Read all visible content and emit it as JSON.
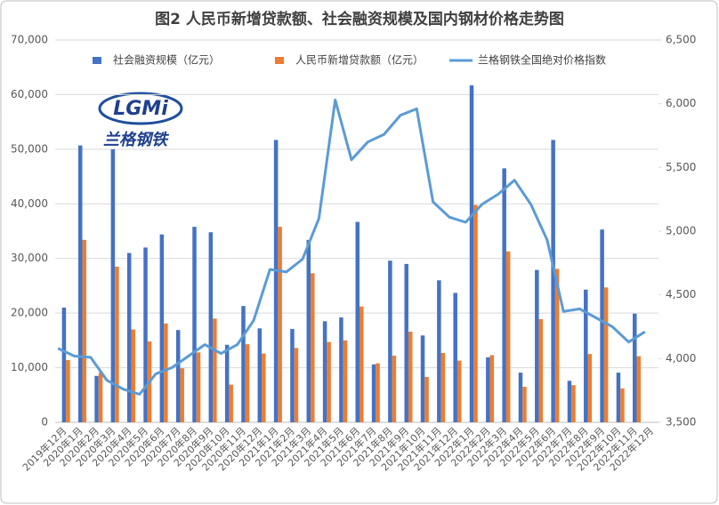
{
  "logo": {
    "text": "LGMi",
    "subtitle": "兰格钢铁"
  },
  "chart_data": {
    "type": "bar_line",
    "title": "图2 人民币新增贷款额、社会融资规模及国内钢材价格走势图",
    "categories": [
      "2019年12月",
      "2020年1月",
      "2020年2月",
      "2020年3月",
      "2020年4月",
      "2020年5月",
      "2020年6月",
      "2020年7月",
      "2020年8月",
      "2020年9月",
      "2020年10月",
      "2020年11月",
      "2020年12月",
      "2021年1月",
      "2021年2月",
      "2021年3月",
      "2021年4月",
      "2021年5月",
      "2021年6月",
      "2021年7月",
      "2021年8月",
      "2021年9月",
      "2021年10月",
      "2021年11月",
      "2021年12月",
      "2022年1月",
      "2022年2月",
      "2022年3月",
      "2022年4月",
      "2022年5月",
      "2022年6月",
      "2022年7月",
      "2022年8月",
      "2022年9月",
      "2022年10月",
      "2022年11月",
      "2022年12月"
    ],
    "series": [
      {
        "name": "社会融资规模（亿元）",
        "type": "bar",
        "color": "#4472c4",
        "values": [
          21000,
          50700,
          8500,
          50000,
          31000,
          32000,
          34400,
          16900,
          35800,
          34800,
          14200,
          21300,
          17200,
          51700,
          17100,
          33400,
          18500,
          19200,
          36700,
          10600,
          29600,
          29000,
          15900,
          26000,
          23700,
          61700,
          11900,
          46500,
          9100,
          27900,
          51700,
          7600,
          24300,
          35300,
          9100,
          19900,
          null
        ]
      },
      {
        "name": "人民币新增贷款额（亿元）",
        "type": "bar",
        "color": "#ed7d31",
        "values": [
          11400,
          33400,
          9100,
          28500,
          17000,
          14800,
          18100,
          9900,
          12800,
          19000,
          6900,
          14300,
          12600,
          35800,
          13600,
          27300,
          14700,
          15000,
          21200,
          10800,
          12200,
          16600,
          8300,
          12700,
          11300,
          39800,
          12300,
          31300,
          6500,
          18900,
          28100,
          6800,
          12500,
          24700,
          6200,
          12100,
          null
        ]
      },
      {
        "name": "兰格钢铁全国绝对价格指数",
        "type": "line",
        "axis": "y2",
        "color": "#5b9bd5",
        "values": [
          4080,
          4020,
          4010,
          3830,
          3760,
          3720,
          3880,
          3930,
          4020,
          4110,
          4040,
          4110,
          4300,
          4700,
          4680,
          4780,
          5100,
          6030,
          5560,
          5700,
          5760,
          5910,
          5960,
          5230,
          5110,
          5070,
          5210,
          5290,
          5400,
          5210,
          4930,
          4370,
          4390,
          4320,
          4250,
          4130,
          4210
        ]
      }
    ],
    "ylim": [
      0,
      70000
    ],
    "yticks": [
      0,
      {
        "value": 10000,
        "label": "10,000"
      },
      {
        "value": 20000,
        "label": "20,000"
      },
      {
        "value": 30000,
        "label": "30,000"
      },
      {
        "value": 40000,
        "label": "40,000"
      },
      {
        "value": 50000,
        "label": "50,000"
      },
      {
        "value": 60000,
        "label": "60,000"
      },
      {
        "value": 70000,
        "label": "70,000"
      }
    ],
    "y2lim": [
      3500,
      6500
    ],
    "y2ticks": [
      {
        "value": 3500,
        "label": "3,500"
      },
      {
        "value": 4000,
        "label": "4,000"
      },
      {
        "value": 4500,
        "label": "4,500"
      },
      {
        "value": 5000,
        "label": "5,000"
      },
      {
        "value": 5500,
        "label": "5,500"
      },
      {
        "value": 6000,
        "label": "6,000"
      },
      {
        "value": 6500,
        "label": "6,500"
      }
    ],
    "legend": "top"
  }
}
